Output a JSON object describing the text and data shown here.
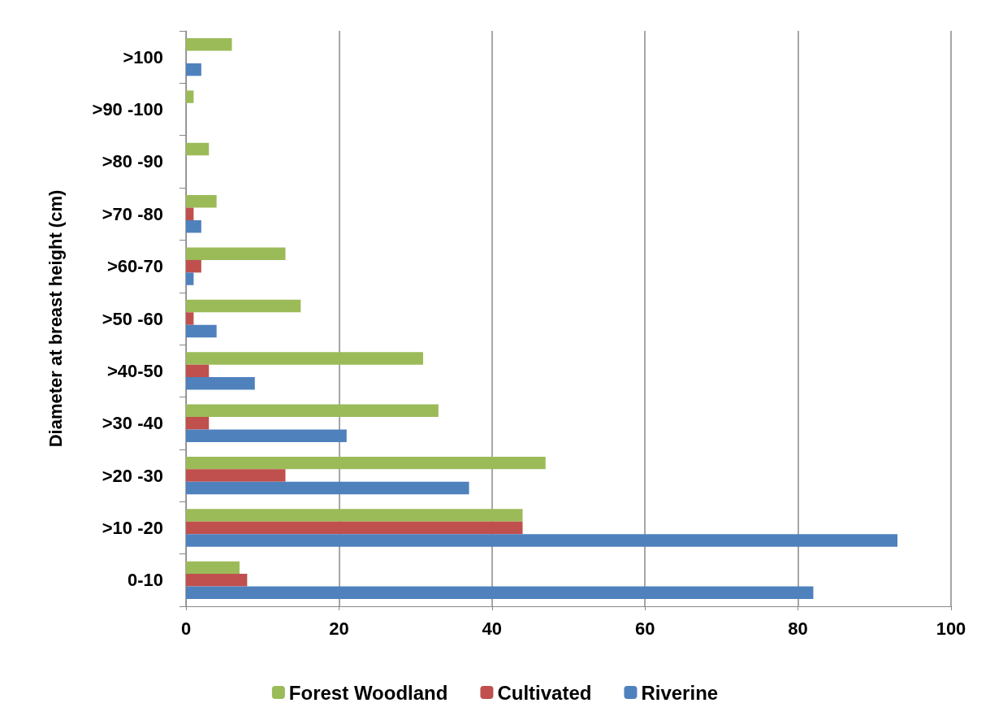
{
  "chart_data": {
    "type": "bar",
    "orientation": "horizontal",
    "ylabel": "Diameter at breast height (cm)",
    "categories": [
      ">100",
      ">90 -100",
      ">80 -90",
      ">70 -80",
      ">60-70",
      ">50 -60",
      ">40-50",
      ">30 -40",
      ">20 -30",
      ">10 -20",
      "0-10"
    ],
    "series": [
      {
        "name": "Forest Woodland",
        "color": "#9bbb59",
        "values": [
          6,
          1,
          3,
          4,
          13,
          15,
          31,
          33,
          47,
          44,
          7
        ]
      },
      {
        "name": "Cultivated",
        "color": "#c0504d",
        "values": [
          0,
          0,
          0,
          1,
          2,
          1,
          3,
          3,
          13,
          44,
          8
        ]
      },
      {
        "name": "Riverine",
        "color": "#4f81bd",
        "values": [
          2,
          0,
          0,
          2,
          1,
          4,
          9,
          21,
          37,
          93,
          82
        ]
      }
    ],
    "xlim": [
      0,
      100
    ],
    "xticks": [
      0,
      20,
      40,
      60,
      80,
      100
    ],
    "grid": "x",
    "legend": "bottom"
  }
}
